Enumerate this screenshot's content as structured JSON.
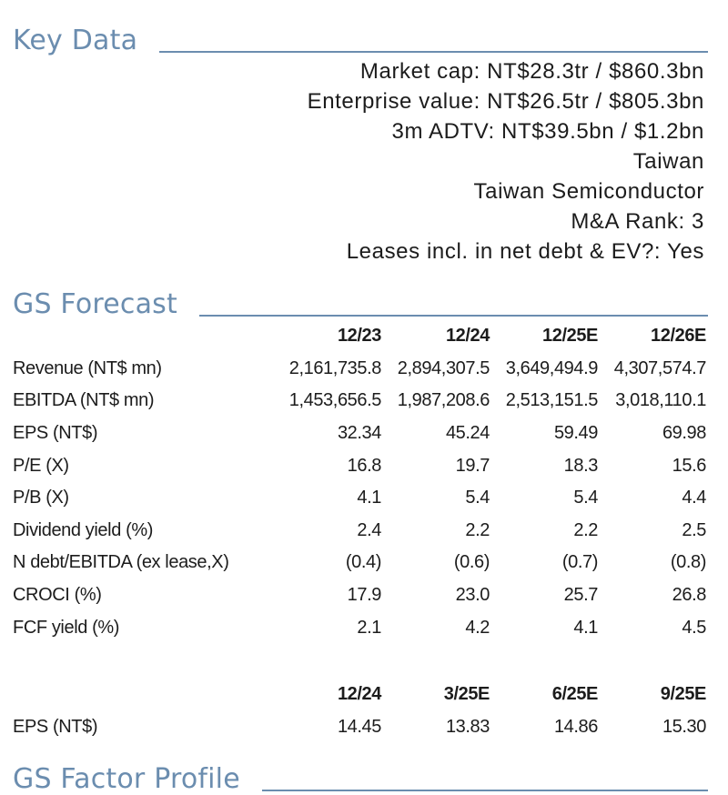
{
  "key_data": {
    "title": "Key Data",
    "lines": [
      "Market cap: NT$28.3tr / $860.3bn",
      "Enterprise value: NT$26.5tr / $805.3bn",
      "3m ADTV: NT$39.5bn / $1.2bn",
      "Taiwan",
      "Taiwan Semiconductor",
      "M&A Rank: 3",
      "Leases incl. in net debt & EV?: Yes"
    ]
  },
  "gs_forecast": {
    "title": "GS Forecast",
    "annual": {
      "headers": [
        "12/23",
        "12/24",
        "12/25E",
        "12/26E"
      ],
      "rows": [
        {
          "label": "Revenue (NT$ mn)",
          "values": [
            "2,161,735.8",
            "2,894,307.5",
            "3,649,494.9",
            "4,307,574.7"
          ]
        },
        {
          "label": "EBITDA (NT$ mn)",
          "values": [
            "1,453,656.5",
            "1,987,208.6",
            "2,513,151.5",
            "3,018,110.1"
          ]
        },
        {
          "label": "EPS (NT$)",
          "values": [
            "32.34",
            "45.24",
            "59.49",
            "69.98"
          ]
        },
        {
          "label": "P/E (X)",
          "values": [
            "16.8",
            "19.7",
            "18.3",
            "15.6"
          ]
        },
        {
          "label": "P/B (X)",
          "values": [
            "4.1",
            "5.4",
            "5.4",
            "4.4"
          ]
        },
        {
          "label": "Dividend yield (%)",
          "values": [
            "2.4",
            "2.2",
            "2.2",
            "2.5"
          ]
        },
        {
          "label": "N debt/EBITDA (ex lease,X)",
          "values": [
            "(0.4)",
            "(0.6)",
            "(0.7)",
            "(0.8)"
          ]
        },
        {
          "label": "CROCI (%)",
          "values": [
            "17.9",
            "23.0",
            "25.7",
            "26.8"
          ]
        },
        {
          "label": "FCF yield (%)",
          "values": [
            "2.1",
            "4.2",
            "4.1",
            "4.5"
          ]
        }
      ]
    },
    "quarterly": {
      "headers": [
        "12/24",
        "3/25E",
        "6/25E",
        "9/25E"
      ],
      "rows": [
        {
          "label": "EPS (NT$)",
          "values": [
            "14.45",
            "13.83",
            "14.86",
            "15.30"
          ]
        }
      ]
    }
  },
  "gs_factor_profile": {
    "title": "GS Factor Profile"
  },
  "colors": {
    "heading": "#6b8daf",
    "text": "#1c1c1c"
  }
}
